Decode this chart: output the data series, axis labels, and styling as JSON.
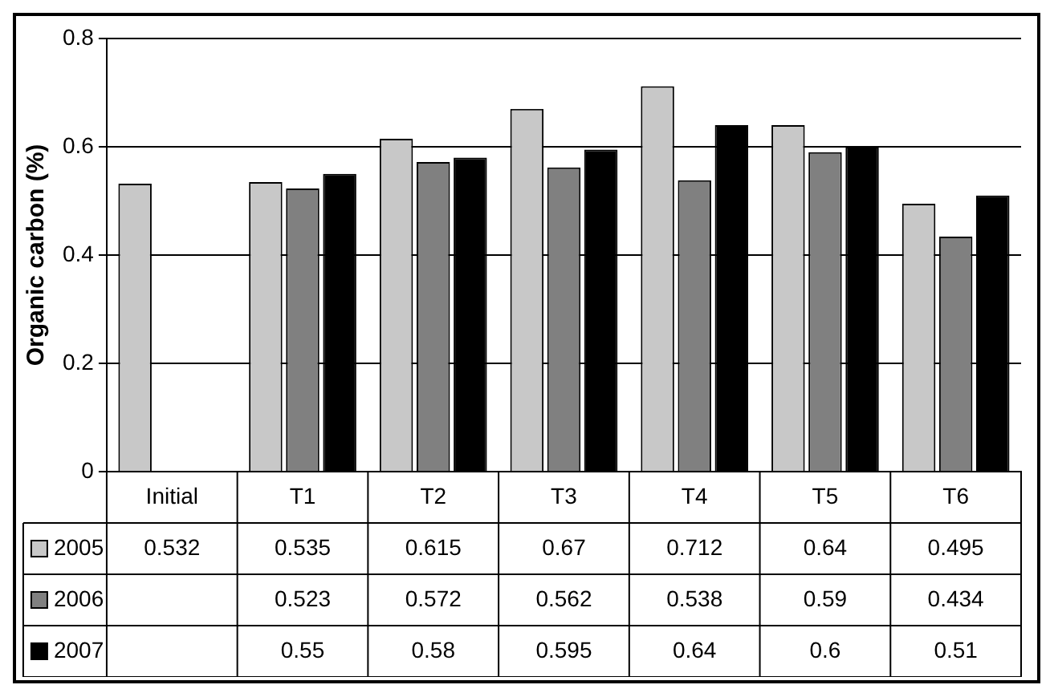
{
  "chart_data": {
    "type": "bar",
    "ylabel": "Organic carbon (%)",
    "categories": [
      "Initial",
      "T1",
      "T2",
      "T3",
      "T4",
      "T5",
      "T6"
    ],
    "series": [
      {
        "name": "2005",
        "color": "#c8c8c8",
        "values": [
          0.532,
          0.535,
          0.615,
          0.67,
          0.712,
          0.64,
          0.495
        ]
      },
      {
        "name": "2006",
        "color": "#808080",
        "values": [
          null,
          0.523,
          0.572,
          0.562,
          0.538,
          0.59,
          0.434
        ]
      },
      {
        "name": "2007",
        "color": "#000000",
        "values": [
          null,
          0.55,
          0.58,
          0.595,
          0.64,
          0.6,
          0.51
        ]
      }
    ],
    "ylim": [
      0,
      0.8
    ],
    "yticks": [
      0,
      0.2,
      0.4,
      0.6,
      0.8
    ],
    "grid": "y",
    "legend": "bottom",
    "data_labels": true
  }
}
